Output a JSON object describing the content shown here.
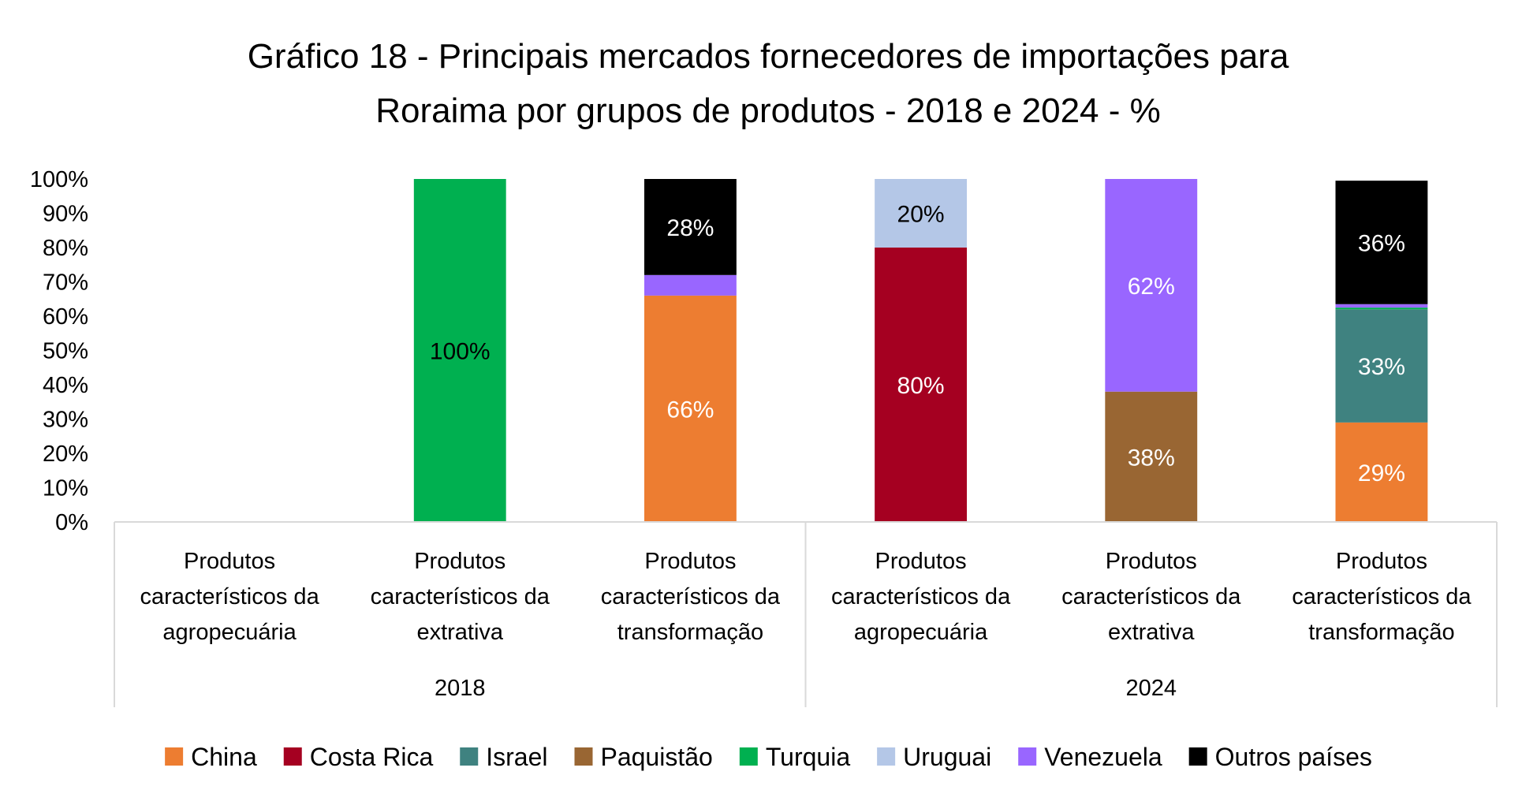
{
  "chart_data": {
    "type": "bar",
    "stacked": true,
    "percent": true,
    "title": "Gráfico 18 - Principais mercados fornecedores de importações para Roraima por grupos de produtos - 2018 e 2024 - %",
    "title_lines": [
      "Gráfico 18 - Principais mercados fornecedores de importações para",
      "Roraima por grupos de produtos - 2018 e 2024 - %"
    ],
    "xlabel": "",
    "ylabel": "",
    "ylim": [
      0,
      100
    ],
    "y_ticks": [
      "0%",
      "10%",
      "20%",
      "30%",
      "40%",
      "50%",
      "60%",
      "70%",
      "80%",
      "90%",
      "100%"
    ],
    "grid": false,
    "legend_position": "bottom",
    "groups": [
      {
        "label": "2018",
        "categories": [
          0,
          1,
          2
        ]
      },
      {
        "label": "2024",
        "categories": [
          3,
          4,
          5
        ]
      }
    ],
    "categories": [
      {
        "lines": [
          "Produtos",
          "característicos da",
          "agropecuária"
        ],
        "year": "2018"
      },
      {
        "lines": [
          "Produtos",
          "característicos da",
          "extrativa"
        ],
        "year": "2018"
      },
      {
        "lines": [
          "Produtos",
          "característicos da",
          "transformação"
        ],
        "year": "2018"
      },
      {
        "lines": [
          "Produtos",
          "característicos da",
          "agropecuária"
        ],
        "year": "2024"
      },
      {
        "lines": [
          "Produtos",
          "característicos da",
          "extrativa"
        ],
        "year": "2024"
      },
      {
        "lines": [
          "Produtos",
          "característicos da",
          "transformação"
        ],
        "year": "2024"
      }
    ],
    "series": [
      {
        "name": "China",
        "color": "#ED7D31",
        "label_color": "#FFFFFF",
        "values": [
          0,
          0,
          66,
          0,
          0,
          29
        ],
        "labels": [
          null,
          null,
          "66%",
          null,
          null,
          "29%"
        ]
      },
      {
        "name": "Costa Rica",
        "color": "#A50021",
        "label_color": "#FFFFFF",
        "values": [
          0,
          0,
          0,
          80,
          0,
          0
        ],
        "labels": [
          null,
          null,
          null,
          "80%",
          null,
          null
        ]
      },
      {
        "name": "Israel",
        "color": "#3F8280",
        "label_color": "#FFFFFF",
        "values": [
          0,
          0,
          0,
          0,
          0,
          33
        ],
        "labels": [
          null,
          null,
          null,
          null,
          null,
          "33%"
        ]
      },
      {
        "name": "Paquistão",
        "color": "#996633",
        "label_color": "#FFFFFF",
        "values": [
          0,
          0,
          0,
          0,
          38,
          0
        ],
        "labels": [
          null,
          null,
          null,
          null,
          "38%",
          null
        ]
      },
      {
        "name": "Turquia",
        "color": "#00B050",
        "label_color": "#000000",
        "values": [
          0,
          100,
          0,
          0,
          0,
          0.5
        ],
        "labels": [
          null,
          "100%",
          null,
          null,
          null,
          null
        ]
      },
      {
        "name": "Uruguai",
        "color": "#B4C7E7",
        "label_color": "#000000",
        "values": [
          0,
          0,
          0,
          20,
          0,
          0
        ],
        "labels": [
          null,
          null,
          null,
          "20%",
          null,
          null
        ]
      },
      {
        "name": "Venezuela",
        "color": "#9966FF",
        "label_color": "#FFFFFF",
        "values": [
          0,
          0,
          6,
          0,
          62,
          1
        ],
        "labels": [
          null,
          null,
          null,
          null,
          "62%",
          null
        ]
      },
      {
        "name": "Outros países",
        "color": "#000000",
        "label_color": "#FFFFFF",
        "values": [
          0,
          0,
          28,
          0,
          0,
          36
        ],
        "labels": [
          null,
          null,
          "28%",
          null,
          null,
          "36%"
        ]
      }
    ]
  }
}
